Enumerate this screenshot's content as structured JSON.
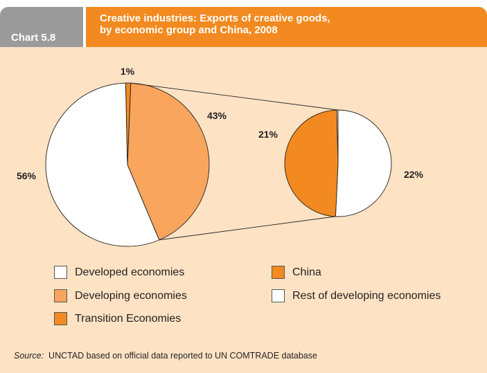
{
  "header": {
    "tab_label": "Chart 5.8",
    "title_line1": "Creative industries: Exports of creative goods,",
    "title_line2": "by economic group and China, 2008"
  },
  "colors": {
    "header_tab": "#9b9b9b",
    "header_title": "#f28a21",
    "panel_bg": "#fde3c4",
    "developed": "#ffffff",
    "developing": "#f9a55d",
    "transition": "#f28a21",
    "china": "#f28a21",
    "rest_developing": "#ffffff"
  },
  "chart_data": [
    {
      "type": "pie",
      "title": "",
      "slices": [
        {
          "label": "Developed economies",
          "value": 56,
          "display": "56%"
        },
        {
          "label": "Developing economies",
          "value": 43,
          "display": "43%"
        },
        {
          "label": "Transition Economies",
          "value": 1,
          "display": "1%"
        }
      ]
    },
    {
      "type": "pie",
      "title": "",
      "breakout_of": "Developing economies",
      "slices": [
        {
          "label": "China",
          "value": 21,
          "display": "21%"
        },
        {
          "label": "Rest of developing economies",
          "value": 22,
          "display": "22%"
        }
      ]
    }
  ],
  "legend": {
    "developed": "Developed economies",
    "developing": "Developing economies",
    "transition": "Transition Economies",
    "china": "China",
    "rest": "Rest of developing economies"
  },
  "source": {
    "label": "Source:",
    "text": "UNCTAD based on official data reported to UN COMTRADE database"
  }
}
